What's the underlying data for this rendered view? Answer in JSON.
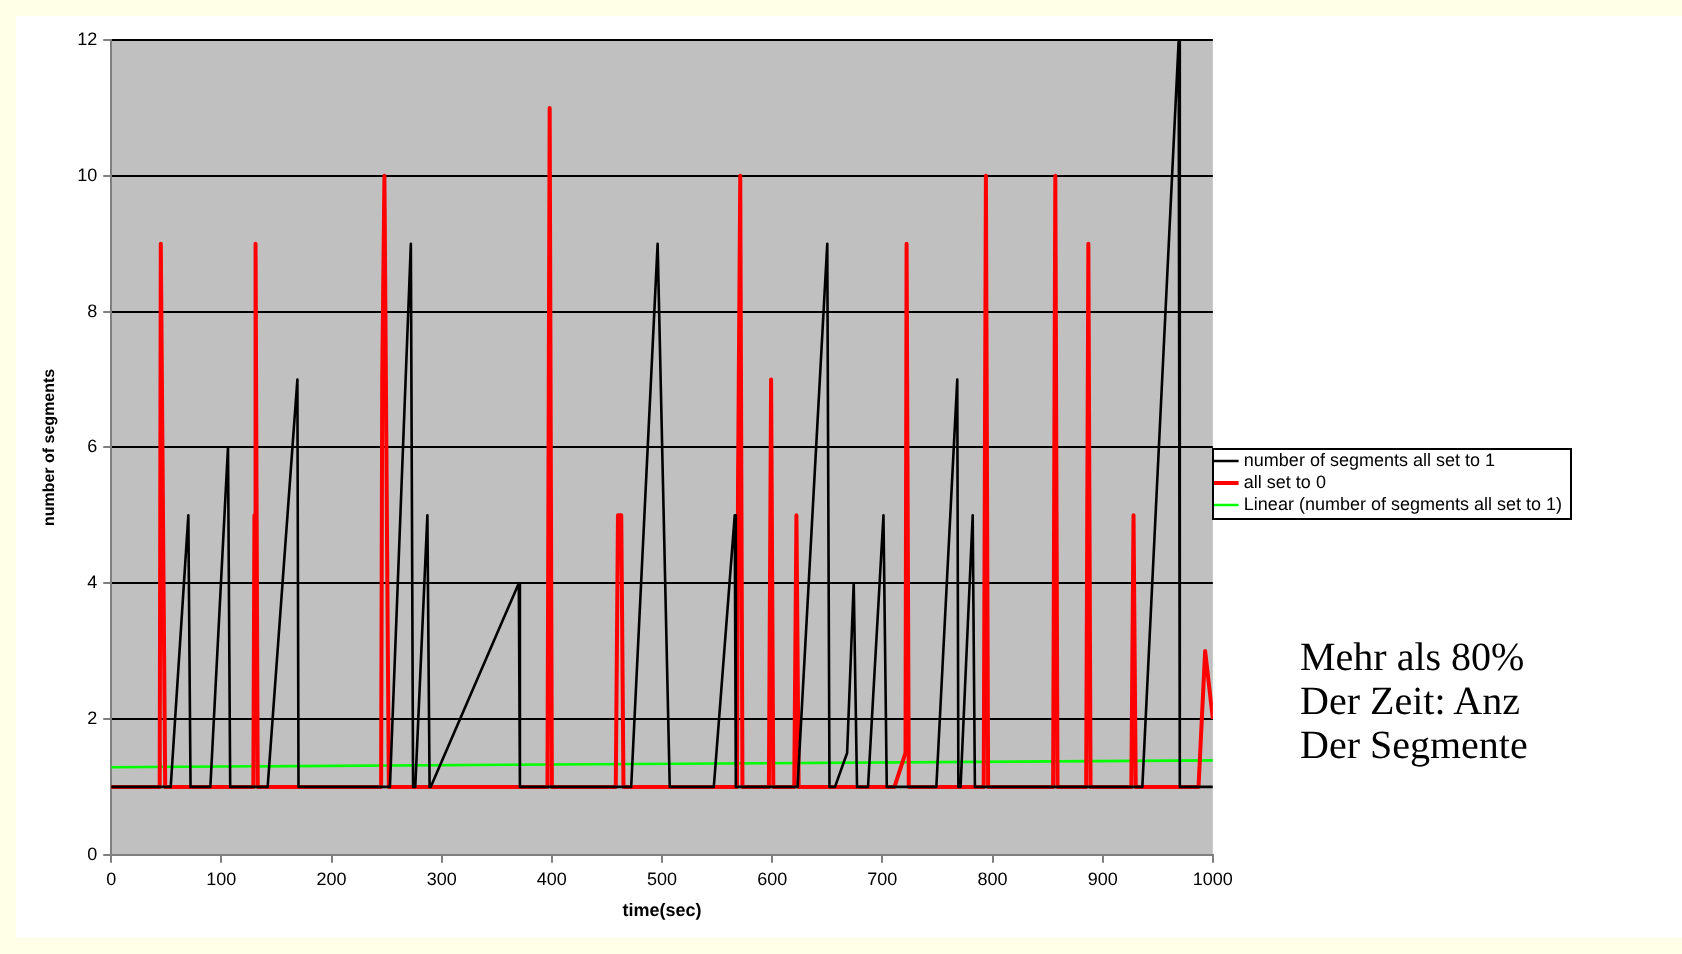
{
  "chart_data": {
    "type": "line",
    "xlabel": "time(sec)",
    "ylabel": "number of segments",
    "xlim": [
      0,
      1000
    ],
    "xticks": [
      0,
      100,
      200,
      300,
      400,
      500,
      600,
      700,
      800,
      900,
      1000
    ],
    "ylim": [
      0,
      12
    ],
    "yticks": [
      0,
      2,
      4,
      6,
      8,
      10,
      12
    ],
    "grid": "y",
    "legend": "right",
    "marker": "none",
    "line_style": "solid",
    "annotations": [
      "Mehr als 80%\nDer Zeit: Anz\nDer Segmente"
    ],
    "series": [
      {
        "name": "number of segments all set to 1",
        "color": "#000000",
        "x": [
          0,
          54,
          70,
          72,
          90,
          106,
          108,
          142,
          169,
          170,
          253,
          272,
          274,
          276,
          287,
          289,
          290,
          370,
          371,
          472,
          496,
          507,
          547,
          566,
          567,
          623,
          650,
          652,
          657,
          668,
          674,
          677,
          687,
          701,
          704,
          749,
          768,
          769,
          771,
          782,
          784,
          936,
          969,
          970,
          1000
        ],
        "values": [
          1,
          1,
          5,
          1,
          1,
          6,
          1,
          1,
          7,
          1,
          1,
          9,
          1,
          1,
          5,
          1,
          1,
          4,
          1,
          1,
          9,
          1,
          1,
          5,
          1,
          1,
          9,
          1,
          1,
          1.5,
          4,
          1,
          1,
          5,
          1,
          1,
          7,
          1,
          1,
          5,
          1,
          1,
          12,
          1,
          1
        ]
      },
      {
        "name": "all set to 0",
        "color": "#ff0000",
        "x": [
          0,
          44,
          45,
          47,
          49,
          129,
          130,
          131,
          133,
          245,
          246,
          248,
          250,
          252,
          396,
          398,
          400,
          458,
          460,
          463,
          465,
          568,
          569,
          571,
          573,
          597,
          599,
          601,
          620,
          622,
          624,
          711,
          721,
          722,
          724,
          792,
          794,
          796,
          855,
          857,
          859,
          885,
          887,
          889,
          926,
          928,
          930,
          987,
          993,
          1000
        ],
        "values": [
          1,
          1,
          9,
          5,
          1,
          1,
          5,
          9,
          1,
          1,
          7,
          10,
          5.5,
          1,
          1,
          11,
          1,
          1,
          5,
          5,
          1,
          1,
          5.5,
          10,
          1,
          1,
          7,
          1,
          1,
          5,
          1,
          1,
          1.5,
          9,
          1,
          1,
          10,
          1,
          1,
          10,
          1,
          1,
          9,
          1,
          1,
          5,
          1,
          1,
          3,
          2
        ]
      },
      {
        "name": "Linear (number of segments all set to 1)",
        "type": "line",
        "color": "#00ff00",
        "x": [
          0,
          1000
        ],
        "values": [
          1.29,
          1.39
        ]
      }
    ]
  }
}
